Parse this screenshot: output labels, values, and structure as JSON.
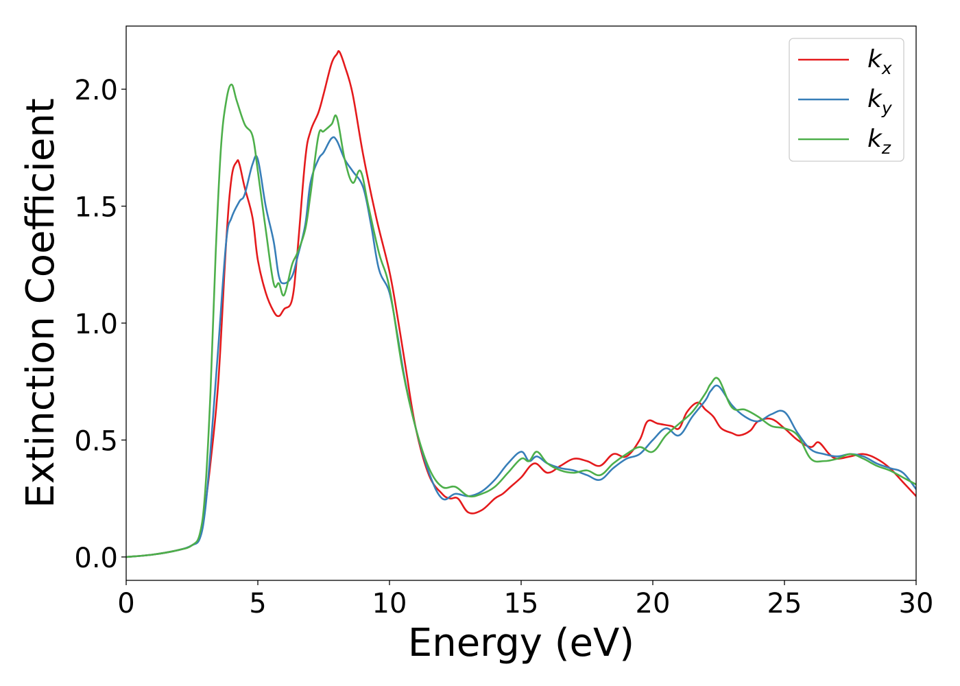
{
  "chart_data": {
    "type": "line",
    "xlabel": "Energy (eV)",
    "ylabel": "Extinction Coefficient",
    "xlim": [
      0,
      30
    ],
    "ylim": [
      -0.1,
      2.27
    ],
    "xticks": [
      0,
      5,
      10,
      15,
      20,
      25,
      30
    ],
    "xtick_labels": [
      "0",
      "5",
      "10",
      "15",
      "20",
      "25",
      "30"
    ],
    "yticks": [
      0.0,
      0.5,
      1.0,
      1.5,
      2.0
    ],
    "ytick_labels": [
      "0.0",
      "0.5",
      "1.0",
      "1.5",
      "2.0"
    ],
    "grid": false,
    "legend_position": "top-right",
    "series": [
      {
        "name": "k_x",
        "legend_base": "k",
        "legend_sub": "x",
        "color": "#e41a1c",
        "x": [
          0,
          1,
          2,
          2.5,
          2.8,
          3.0,
          3.2,
          3.5,
          3.8,
          4.0,
          4.2,
          4.3,
          4.5,
          4.8,
          5.0,
          5.3,
          5.6,
          5.8,
          6.0,
          6.3,
          6.5,
          6.8,
          7.0,
          7.3,
          7.5,
          7.8,
          8.0,
          8.1,
          8.3,
          8.6,
          9.0,
          9.5,
          10.0,
          10.3,
          10.6,
          11.0,
          11.5,
          12.0,
          12.3,
          12.6,
          13.0,
          13.5,
          14.0,
          14.3,
          14.6,
          15.0,
          15.5,
          16.0,
          16.5,
          17.0,
          17.5,
          18.0,
          18.5,
          19.0,
          19.5,
          19.8,
          20.2,
          20.7,
          21.0,
          21.3,
          21.7,
          22.0,
          22.3,
          22.6,
          23.0,
          23.3,
          23.7,
          24.0,
          24.5,
          25.0,
          25.5,
          26.0,
          26.3,
          26.7,
          27.0,
          27.5,
          28.0,
          28.5,
          29.0,
          29.5,
          30.0
        ],
        "values": [
          0.0,
          0.01,
          0.03,
          0.05,
          0.09,
          0.22,
          0.4,
          0.75,
          1.35,
          1.62,
          1.69,
          1.68,
          1.58,
          1.45,
          1.27,
          1.13,
          1.05,
          1.03,
          1.06,
          1.1,
          1.3,
          1.7,
          1.82,
          1.9,
          1.98,
          2.11,
          2.15,
          2.16,
          2.1,
          1.98,
          1.72,
          1.45,
          1.22,
          1.03,
          0.82,
          0.55,
          0.35,
          0.27,
          0.25,
          0.25,
          0.19,
          0.2,
          0.25,
          0.27,
          0.3,
          0.34,
          0.4,
          0.36,
          0.39,
          0.42,
          0.41,
          0.39,
          0.44,
          0.43,
          0.5,
          0.58,
          0.57,
          0.56,
          0.55,
          0.62,
          0.66,
          0.63,
          0.6,
          0.55,
          0.53,
          0.52,
          0.54,
          0.58,
          0.59,
          0.55,
          0.5,
          0.47,
          0.49,
          0.44,
          0.42,
          0.43,
          0.44,
          0.42,
          0.38,
          0.32,
          0.26
        ]
      },
      {
        "name": "k_y",
        "legend_base": "k",
        "legend_sub": "y",
        "color": "#377eb8",
        "x": [
          0,
          1,
          2,
          2.5,
          2.8,
          3.0,
          3.2,
          3.5,
          3.8,
          4.0,
          4.3,
          4.5,
          4.8,
          5.0,
          5.3,
          5.6,
          5.8,
          6.0,
          6.3,
          6.5,
          6.8,
          7.0,
          7.3,
          7.5,
          7.8,
          8.0,
          8.3,
          8.6,
          9.0,
          9.3,
          9.6,
          10.0,
          10.3,
          10.6,
          11.0,
          11.5,
          12.0,
          12.5,
          13.0,
          13.5,
          14.0,
          14.5,
          15.0,
          15.3,
          15.6,
          16.0,
          16.5,
          17.0,
          17.5,
          18.0,
          18.5,
          19.0,
          19.5,
          20.0,
          20.5,
          21.0,
          21.5,
          22.0,
          22.2,
          22.5,
          23.0,
          23.5,
          24.0,
          24.5,
          25.0,
          25.5,
          26.0,
          26.5,
          27.0,
          27.5,
          28.0,
          28.5,
          29.0,
          29.5,
          30.0
        ],
        "values": [
          0.0,
          0.01,
          0.03,
          0.05,
          0.08,
          0.2,
          0.45,
          0.9,
          1.35,
          1.45,
          1.52,
          1.55,
          1.68,
          1.7,
          1.5,
          1.35,
          1.2,
          1.17,
          1.2,
          1.28,
          1.42,
          1.6,
          1.7,
          1.73,
          1.79,
          1.78,
          1.7,
          1.65,
          1.58,
          1.42,
          1.23,
          1.13,
          0.95,
          0.75,
          0.55,
          0.36,
          0.25,
          0.27,
          0.26,
          0.28,
          0.33,
          0.4,
          0.45,
          0.41,
          0.43,
          0.4,
          0.38,
          0.37,
          0.35,
          0.33,
          0.38,
          0.42,
          0.44,
          0.5,
          0.55,
          0.52,
          0.6,
          0.67,
          0.71,
          0.73,
          0.65,
          0.6,
          0.58,
          0.61,
          0.62,
          0.53,
          0.46,
          0.44,
          0.43,
          0.44,
          0.43,
          0.4,
          0.38,
          0.36,
          0.29
        ]
      },
      {
        "name": "k_z",
        "legend_base": "k",
        "legend_sub": "z",
        "color": "#4daf4a",
        "x": [
          0,
          1,
          2,
          2.5,
          2.8,
          3.0,
          3.2,
          3.4,
          3.6,
          3.8,
          4.0,
          4.2,
          4.5,
          4.8,
          5.0,
          5.3,
          5.6,
          5.8,
          6.0,
          6.3,
          6.5,
          6.8,
          7.0,
          7.3,
          7.5,
          7.8,
          8.0,
          8.3,
          8.6,
          8.9,
          9.2,
          9.6,
          10.0,
          10.5,
          11.0,
          11.5,
          12.0,
          12.5,
          13.0,
          13.5,
          14.0,
          14.5,
          15.0,
          15.3,
          15.6,
          16.0,
          16.5,
          17.0,
          17.5,
          18.0,
          18.5,
          19.0,
          19.5,
          20.0,
          20.5,
          21.0,
          21.5,
          22.0,
          22.2,
          22.5,
          23.0,
          23.5,
          24.0,
          24.5,
          25.0,
          25.5,
          26.0,
          26.5,
          27.0,
          27.5,
          28.0,
          28.5,
          29.0,
          29.5,
          30.0
        ],
        "values": [
          0.0,
          0.01,
          0.03,
          0.05,
          0.1,
          0.28,
          0.7,
          1.3,
          1.75,
          1.95,
          2.02,
          1.95,
          1.85,
          1.8,
          1.65,
          1.4,
          1.17,
          1.17,
          1.12,
          1.25,
          1.3,
          1.4,
          1.55,
          1.8,
          1.82,
          1.85,
          1.88,
          1.7,
          1.6,
          1.65,
          1.5,
          1.3,
          1.15,
          0.8,
          0.55,
          0.38,
          0.3,
          0.3,
          0.26,
          0.27,
          0.3,
          0.36,
          0.42,
          0.41,
          0.45,
          0.4,
          0.37,
          0.36,
          0.37,
          0.35,
          0.4,
          0.44,
          0.47,
          0.45,
          0.52,
          0.57,
          0.62,
          0.7,
          0.74,
          0.76,
          0.64,
          0.63,
          0.6,
          0.56,
          0.55,
          0.52,
          0.42,
          0.41,
          0.42,
          0.44,
          0.42,
          0.39,
          0.37,
          0.34,
          0.31
        ]
      }
    ]
  }
}
